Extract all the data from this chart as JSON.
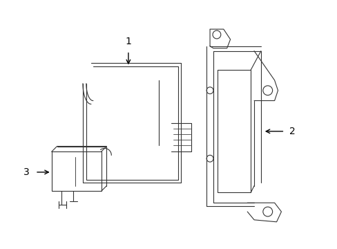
{
  "background_color": "#ffffff",
  "line_color": "#333333",
  "lw": 0.8,
  "figsize": [
    4.89,
    3.6
  ],
  "dpi": 100
}
